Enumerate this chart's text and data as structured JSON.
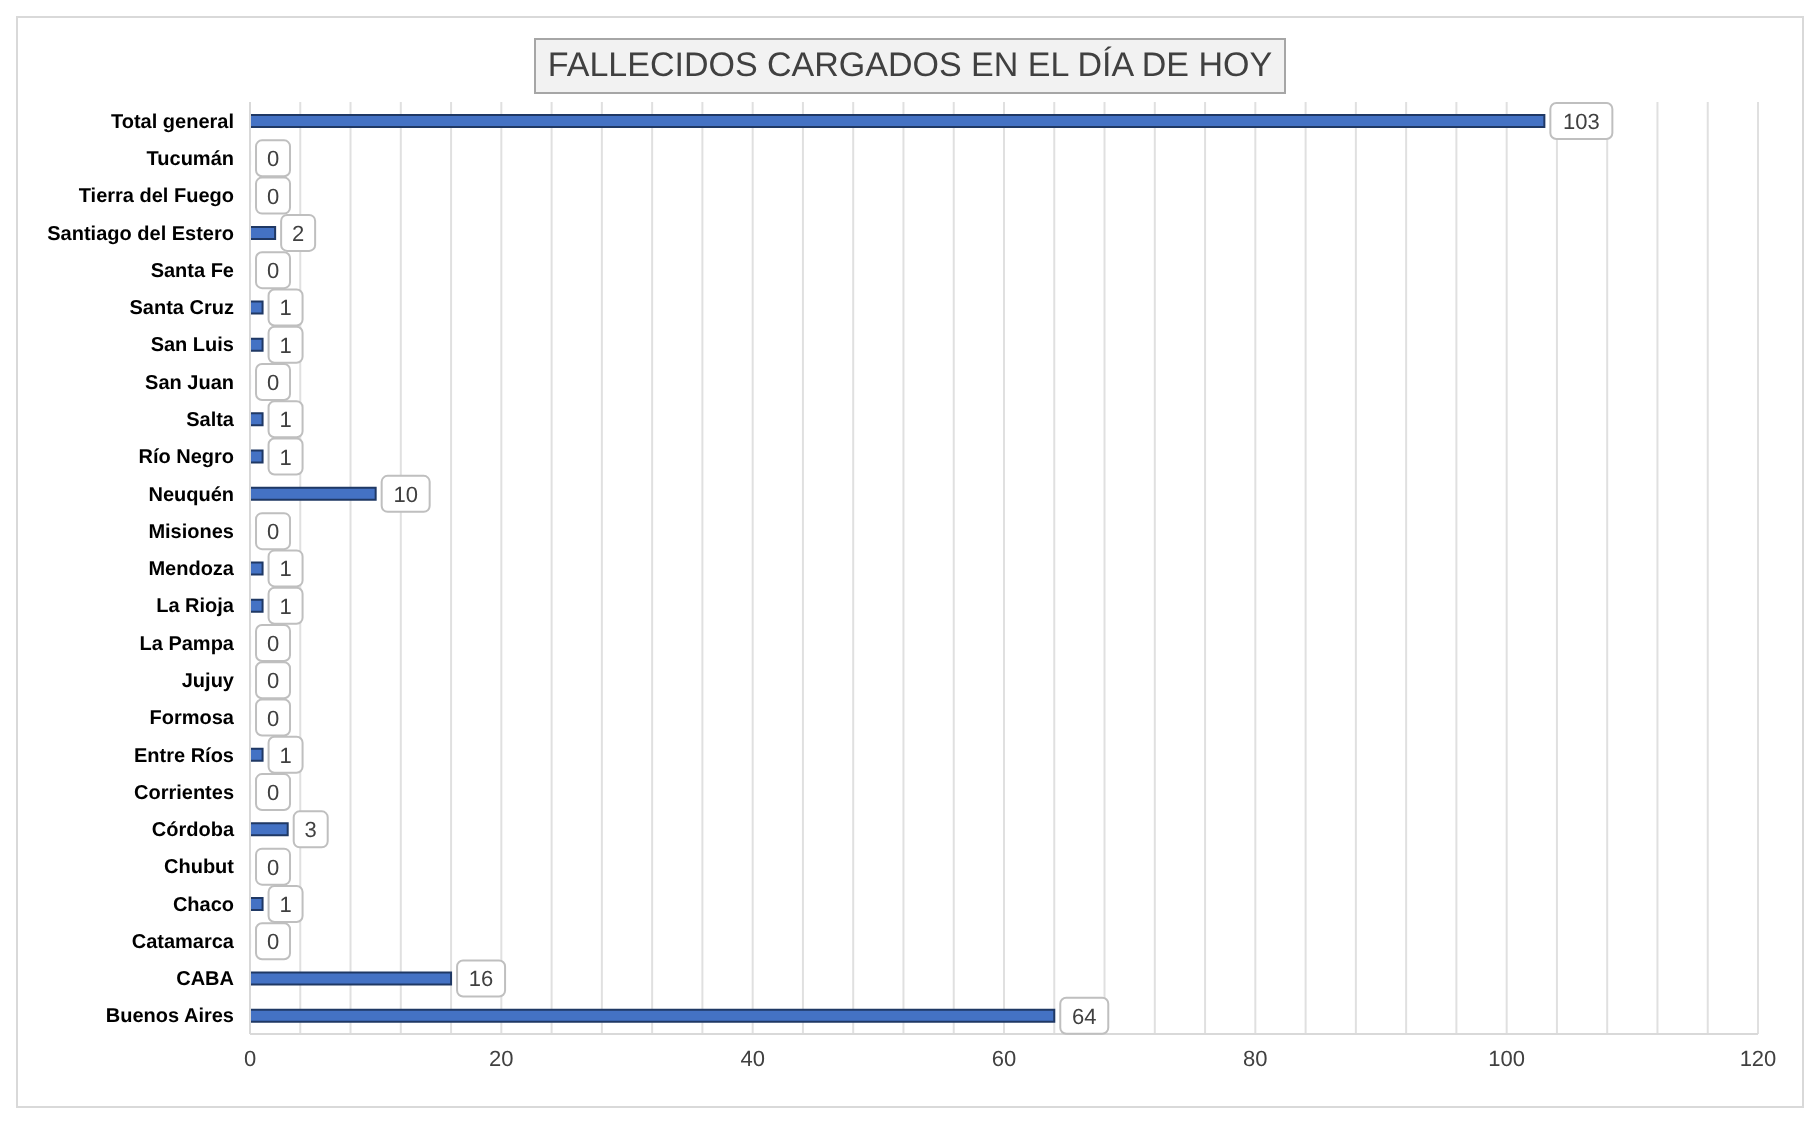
{
  "chart_data": {
    "type": "bar",
    "orientation": "horizontal",
    "title": "FALLECIDOS CARGADOS EN EL DÍA DE HOY",
    "categories": [
      "Total general",
      "Tucumán",
      "Tierra del Fuego",
      "Santiago del Estero",
      "Santa Fe",
      "Santa Cruz",
      "San Luis",
      "San Juan",
      "Salta",
      "Río Negro",
      "Neuquén",
      "Misiones",
      "Mendoza",
      "La Rioja",
      "La Pampa",
      "Jujuy",
      "Formosa",
      "Entre Ríos",
      "Corrientes",
      "Córdoba",
      "Chubut",
      "Chaco",
      "Catamarca",
      "CABA",
      "Buenos Aires"
    ],
    "values": [
      103,
      0,
      0,
      2,
      0,
      1,
      1,
      0,
      1,
      1,
      10,
      0,
      1,
      1,
      0,
      0,
      0,
      1,
      0,
      3,
      0,
      1,
      0,
      16,
      64
    ],
    "color": "#4472c4",
    "data_labels": true,
    "grid": "x",
    "xlim": [
      0,
      120
    ],
    "xticks": [
      0,
      {
        "value": 4,
        "label": null
      },
      {
        "value": 8,
        "label": null
      },
      {
        "value": 12,
        "label": null
      },
      {
        "value": 16,
        "label": null
      },
      20,
      {
        "value": 24,
        "label": null
      },
      {
        "value": 28,
        "label": null
      },
      {
        "value": 32,
        "label": null
      },
      {
        "value": 36,
        "label": null
      },
      40,
      {
        "value": 44,
        "label": null
      },
      {
        "value": 48,
        "label": null
      },
      {
        "value": 52,
        "label": null
      },
      {
        "value": 56,
        "label": null
      },
      60,
      {
        "value": 64,
        "label": null
      },
      {
        "value": 68,
        "label": null
      },
      {
        "value": 72,
        "label": null
      },
      {
        "value": 76,
        "label": null
      },
      80,
      {
        "value": 84,
        "label": null
      },
      {
        "value": 88,
        "label": null
      },
      {
        "value": 92,
        "label": null
      },
      {
        "value": 96,
        "label": null
      },
      100,
      {
        "value": 104,
        "label": null
      },
      {
        "value": 108,
        "label": null
      },
      {
        "value": 112,
        "label": null
      },
      {
        "value": 116,
        "label": null
      },
      120
    ]
  }
}
